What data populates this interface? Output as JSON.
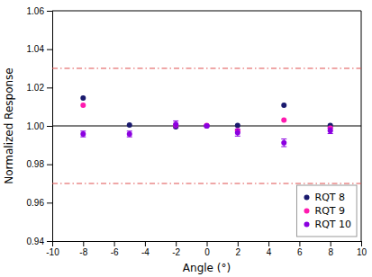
{
  "chart_data": {
    "type": "scatter",
    "xlabel": "Angle (°)",
    "ylabel": "Normalized Response",
    "series": [
      {
        "name": "RQT 8",
        "color": "#1a1a6e",
        "marker": "circle",
        "x": [
          -8,
          -5,
          -2,
          0,
          2,
          5,
          8
        ],
        "values": [
          1.0145,
          1.0005,
          0.9995,
          1.0,
          1.0002,
          1.0108,
          1.0002
        ]
      },
      {
        "name": "RQT 9",
        "color": "#ff1aaf",
        "marker": "circle",
        "x": [
          -8,
          -2,
          0,
          2,
          5,
          8
        ],
        "values": [
          1.0108,
          1.0005,
          1.0002,
          0.9975,
          1.003,
          0.9988
        ]
      },
      {
        "name": "RQT 10",
        "color": "#8b00e0",
        "marker": "circle",
        "x": [
          -8,
          -5,
          -2,
          0,
          2,
          5,
          8
        ],
        "values": [
          0.9958,
          0.9958,
          1.0008,
          1.0,
          0.9965,
          0.9912,
          0.9975
        ],
        "errors": [
          0.0015,
          0.0015,
          0.0018,
          0.0004,
          0.0018,
          0.002,
          0.0015
        ]
      }
    ],
    "reference_lines": [
      {
        "value": 1.0,
        "color": "black",
        "line_style": "solid"
      },
      {
        "value": 1.03,
        "color": "#e05050",
        "line_style": "dashdot"
      },
      {
        "value": 0.97,
        "color": "#e05050",
        "line_style": "dashdot"
      }
    ],
    "xlim": [
      -10,
      10
    ],
    "ylim": [
      0.94,
      1.06
    ],
    "xticks": [
      -10,
      -8,
      -6,
      -4,
      -2,
      0,
      2,
      4,
      6,
      8,
      10
    ],
    "yticks": [
      0.94,
      0.96,
      0.98,
      {
        "value": 1.0,
        "label": "1.00"
      },
      1.02,
      1.04,
      1.06
    ],
    "grid": false,
    "legend": "lower right"
  }
}
